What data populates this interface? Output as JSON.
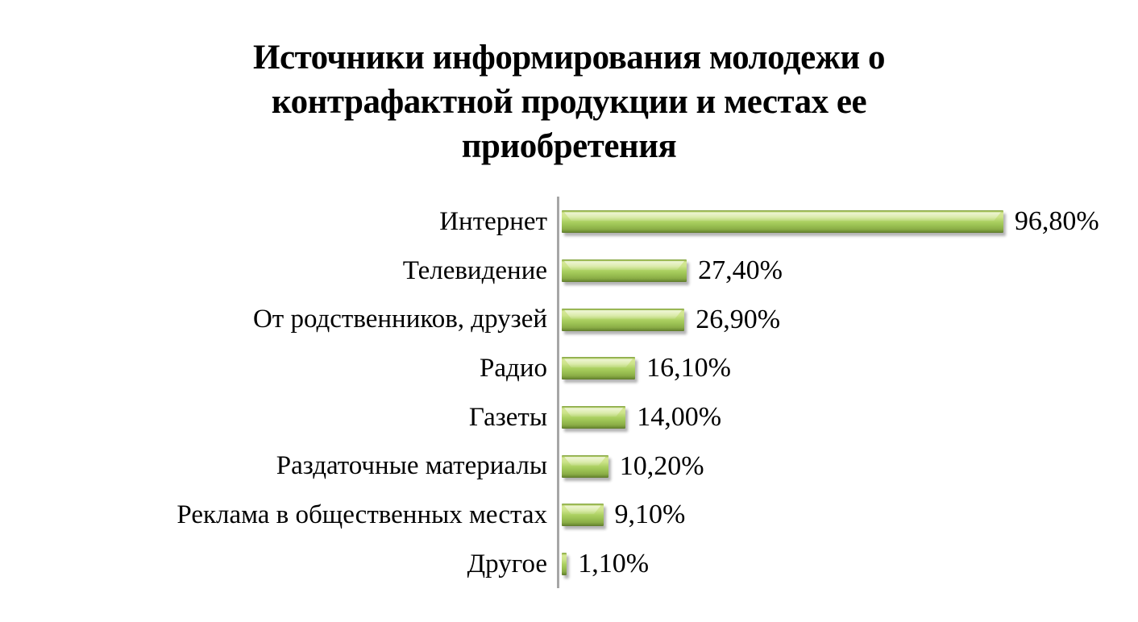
{
  "title": {
    "lines": [
      "Источники информирования молодежи о",
      "контрафактной продукции и местах ее",
      "приобретения"
    ]
  },
  "colors": {
    "bar_main": "#9CC254",
    "bar_highlight": "#D6E897",
    "bar_shadow_edge": "#6D8C34",
    "axis": "#A6A6A6",
    "text": "#000000",
    "background": "#FFFFFF"
  },
  "chart_data": {
    "type": "bar",
    "orientation": "horizontal",
    "title": "Источники информирования молодежи о контрафактной продукции и местах ее приобретения",
    "categories": [
      "Интернет",
      "Телевидение",
      "От родственников, друзей",
      "Радио",
      "Газеты",
      "Раздаточные материалы",
      "Реклама в общественных местах",
      "Другое"
    ],
    "values": [
      96.8,
      27.4,
      26.9,
      16.1,
      14.0,
      10.2,
      9.1,
      1.1
    ],
    "value_labels": [
      "96,80%",
      "27,40%",
      "26,90%",
      "16,10%",
      "14,00%",
      "10,20%",
      "9,10%",
      "1,10%"
    ],
    "xlabel": "",
    "ylabel": "",
    "xlim": [
      0,
      100
    ],
    "grid": false,
    "legend": false,
    "bar_color": "#9CC254",
    "data_labels": "outside-end"
  }
}
